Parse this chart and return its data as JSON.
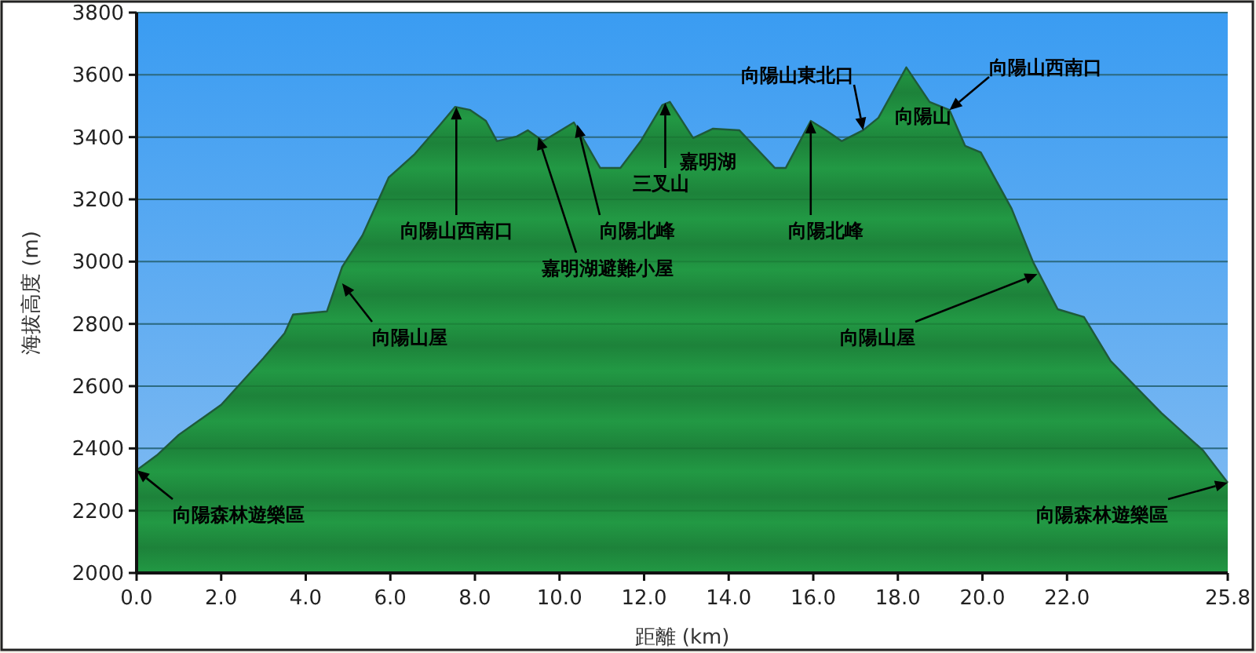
{
  "chart_data": {
    "type": "area",
    "xlabel": "距離  (km)",
    "ylabel": "海拔高度 (m)",
    "x": [
      0,
      0.48,
      1.0,
      2.0,
      3.0,
      3.5,
      3.7,
      4.5,
      4.86,
      5.34,
      5.96,
      6.58,
      7.16,
      7.53,
      7.89,
      8.26,
      8.52,
      8.99,
      9.25,
      9.61,
      10.34,
      10.96,
      11.44,
      11.92,
      12.43,
      12.61,
      13.16,
      13.63,
      14.25,
      15.09,
      15.35,
      15.94,
      16.3,
      16.67,
      17.18,
      17.54,
      18.2,
      18.75,
      19.22,
      19.59,
      19.96,
      20.69,
      21.2,
      21.78,
      22.4,
      23.03,
      24.23,
      25.22,
      25.8
    ],
    "series": [
      {
        "color": "#229944",
        "values": [
          2330,
          2378,
          2444,
          2540,
          2690,
          2770,
          2830,
          2840,
          2983,
          3084,
          3270,
          3346,
          3437,
          3497,
          3487,
          3452,
          3387,
          3402,
          3422,
          3387,
          3447,
          3301,
          3301,
          3387,
          3503,
          3513,
          3397,
          3427,
          3422,
          3301,
          3301,
          3452,
          3422,
          3387,
          3422,
          3462,
          3624,
          3513,
          3487,
          3372,
          3351,
          3170,
          2998,
          2847,
          2822,
          2681,
          2514,
          2393,
          2290
        ]
      }
    ],
    "xlim": [
      0,
      25.8
    ],
    "xticks": [
      {
        "value": 0,
        "label": "0.0"
      },
      {
        "value": 2,
        "label": "2.0"
      },
      {
        "value": 4,
        "label": "4.0"
      },
      {
        "value": 6,
        "label": "6.0"
      },
      {
        "value": 8,
        "label": "8.0"
      },
      {
        "value": 10,
        "label": "10.0"
      },
      {
        "value": 12,
        "label": "12.0"
      },
      {
        "value": 14,
        "label": "14.0"
      },
      {
        "value": 16,
        "label": "16.0"
      },
      {
        "value": 18,
        "label": "18.0"
      },
      {
        "value": 20,
        "label": "20.0"
      },
      {
        "value": 22,
        "label": "22.0"
      },
      {
        "value": 25.8,
        "label": "25.8"
      }
    ],
    "ylim": [
      2000,
      3800
    ],
    "yticks": [
      2000,
      2200,
      2400,
      2600,
      2800,
      3000,
      3200,
      3400,
      3600,
      3800
    ],
    "grid": "y",
    "annotations": [
      {
        "text": "向陽森林遊樂區",
        "x": 0,
        "y": 2330
      },
      {
        "text": "向陽山屋",
        "x": 4.86,
        "y": 2930
      },
      {
        "text": "向陽山西南口",
        "x": 7.56,
        "y": 3497
      },
      {
        "text": "嘉明湖避難小屋",
        "x": 9.5,
        "y": 3400
      },
      {
        "text": "向陽北峰",
        "x": 10.42,
        "y": 3440
      },
      {
        "text": "三叉山",
        "x": 12.5,
        "y": 3510
      },
      "嘉明湖",
      {
        "text": "向陽北峰",
        "x": 15.94,
        "y": 3452
      },
      {
        "text": "向陽山東北口",
        "x": 17.18,
        "y": 3422
      },
      "向陽山",
      {
        "text": "向陽山西南口",
        "x": 19.22,
        "y": 3487
      },
      {
        "text": "向陽山屋",
        "x": 21.3,
        "y": 2960
      },
      {
        "text": "向陽森林遊樂區",
        "x": 25.8,
        "y": 2290
      }
    ]
  }
}
